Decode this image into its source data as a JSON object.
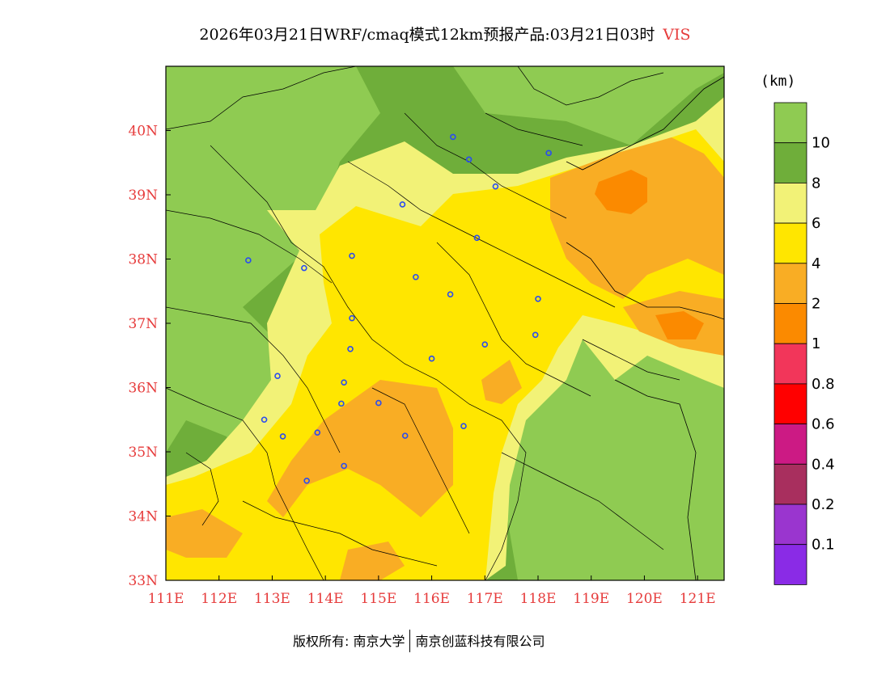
{
  "title": {
    "main": "2026年03月21日WRF/cmaq模式12km预报产品:03月21日03时",
    "variable": "VIS"
  },
  "map": {
    "lon_range": [
      111,
      121.5
    ],
    "lat_range": [
      33,
      41
    ],
    "lat_ticks": [
      {
        "value": 40,
        "label": "40N"
      },
      {
        "value": 39,
        "label": "39N"
      },
      {
        "value": 38,
        "label": "38N"
      },
      {
        "value": 37,
        "label": "37N"
      },
      {
        "value": 36,
        "label": "36N"
      },
      {
        "value": 35,
        "label": "35N"
      },
      {
        "value": 34,
        "label": "34N"
      },
      {
        "value": 33,
        "label": "33N"
      }
    ],
    "lon_ticks": [
      {
        "value": 111,
        "label": "111E"
      },
      {
        "value": 112,
        "label": "112E"
      },
      {
        "value": 113,
        "label": "113E"
      },
      {
        "value": 114,
        "label": "114E"
      },
      {
        "value": 115,
        "label": "115E"
      },
      {
        "value": 116,
        "label": "116E"
      },
      {
        "value": 117,
        "label": "117E"
      },
      {
        "value": 118,
        "label": "118E"
      },
      {
        "value": 119,
        "label": "119E"
      },
      {
        "value": 120,
        "label": "120E"
      },
      {
        "value": 121,
        "label": "121E"
      }
    ],
    "tick_color": "#e63b3b",
    "city_markers": [
      {
        "lon": 116.4,
        "lat": 39.9
      },
      {
        "lon": 116.7,
        "lat": 39.55
      },
      {
        "lon": 118.2,
        "lat": 39.65
      },
      {
        "lon": 117.2,
        "lat": 39.13
      },
      {
        "lon": 115.45,
        "lat": 38.85
      },
      {
        "lon": 116.85,
        "lat": 38.33
      },
      {
        "lon": 114.5,
        "lat": 38.05
      },
      {
        "lon": 112.55,
        "lat": 37.98
      },
      {
        "lon": 113.6,
        "lat": 37.86
      },
      {
        "lon": 115.7,
        "lat": 37.72
      },
      {
        "lon": 116.35,
        "lat": 37.45
      },
      {
        "lon": 118.0,
        "lat": 37.38
      },
      {
        "lon": 114.5,
        "lat": 37.08
      },
      {
        "lon": 117.95,
        "lat": 36.82
      },
      {
        "lon": 117.0,
        "lat": 36.67
      },
      {
        "lon": 114.47,
        "lat": 36.6
      },
      {
        "lon": 116.0,
        "lat": 36.45
      },
      {
        "lon": 113.1,
        "lat": 36.18
      },
      {
        "lon": 114.35,
        "lat": 36.08
      },
      {
        "lon": 114.3,
        "lat": 35.75
      },
      {
        "lon": 115.0,
        "lat": 35.76
      },
      {
        "lon": 112.85,
        "lat": 35.5
      },
      {
        "lon": 116.6,
        "lat": 35.4
      },
      {
        "lon": 113.2,
        "lat": 35.24
      },
      {
        "lon": 113.85,
        "lat": 35.3
      },
      {
        "lon": 115.5,
        "lat": 35.25
      },
      {
        "lon": 114.35,
        "lat": 34.78
      },
      {
        "lon": 113.65,
        "lat": 34.55
      }
    ],
    "marker_color": "#2a4cf0"
  },
  "legend": {
    "unit": "(km)",
    "bins": [
      {
        "label": "10",
        "color": "#8fcb52"
      },
      {
        "label": "8",
        "color": "#6fae3a"
      },
      {
        "label": "6",
        "color": "#f2f277"
      },
      {
        "label": "4",
        "color": "#ffe600"
      },
      {
        "label": "2",
        "color": "#f9ad24"
      },
      {
        "label": "1",
        "color": "#fb8a00"
      },
      {
        "label": "0.8",
        "color": "#f2365a"
      },
      {
        "label": "0.6",
        "color": "#ff0000"
      },
      {
        "label": "0.4",
        "color": "#cc1a84"
      },
      {
        "label": "0.2",
        "color": "#a82f5e"
      },
      {
        "label": "0.1",
        "color": "#9a35cf"
      },
      {
        "label": "",
        "color": "#8a2be6"
      }
    ]
  },
  "footer": {
    "copyright": "版权所有: 南京大学",
    "company": "南京创蓝科技有限公司"
  }
}
